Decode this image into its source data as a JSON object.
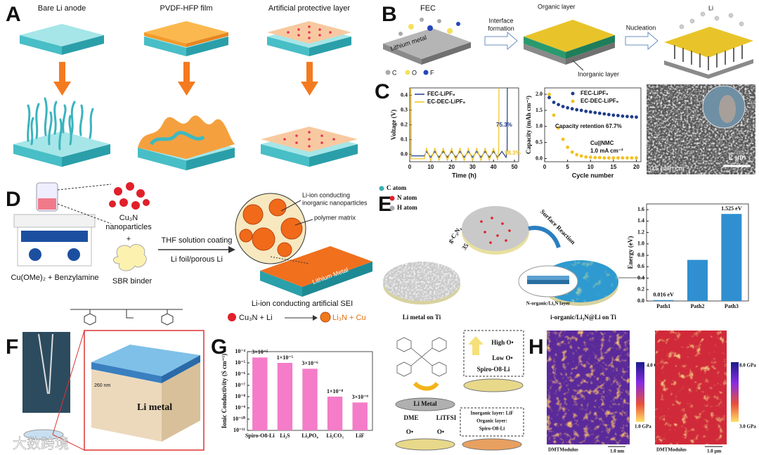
{
  "panels": {
    "A": {
      "letter": "A",
      "labels": [
        "Bare Li anode",
        "PVDF-HFP film",
        "Artificial protective layer"
      ]
    },
    "B": {
      "letter": "B",
      "fec": "FEC",
      "substrate": "Lithium metal",
      "step1": [
        "Interface",
        "formation"
      ],
      "organic": "Organic layer",
      "inorganic": "Inorganic layer",
      "step2": "Nucleation",
      "li": "Li",
      "legend": [
        "C",
        "O",
        "F"
      ]
    },
    "C": {
      "letter": "C",
      "scale_bar": "2 μm",
      "areal_capacity": "0.5 mAh cm⁻²"
    },
    "D": {
      "letter": "D",
      "nanoparticles": [
        "Cu₃N",
        "nanoparticles"
      ],
      "plus": "+",
      "binder": "SBR binder",
      "precursor": "Cu(OMe)₂ + Benzylamine",
      "process_top": "THF solution coating",
      "process_bottom": "Li foil/porous Li",
      "callout1": [
        "Li-ion conducting",
        "inorganic nanoparticles"
      ],
      "callout2": "polymer matrix",
      "substrate": "Lithium Metal",
      "caption": "Li-ion conducting artificial SEI",
      "reactants": "Cu₃N + Li",
      "products": "Li₃N + Cu"
    },
    "E": {
      "letter": "E",
      "legend": [
        "C atom",
        "N atom",
        "H atom"
      ],
      "precursor": "g-C₃N₄",
      "temperature": "350 °C",
      "reaction": "Surface Reaction",
      "start": "Li metal on Ti",
      "layer": "N-organic/Li₃N layer",
      "end": "i-organic/Li₃N@Li on Ti"
    },
    "F": {
      "letter": "F",
      "thickness": "260 nm",
      "substrate": "Li metal"
    },
    "G": {
      "letter": "G",
      "high": "High O•",
      "low": "Low O•",
      "spiro": "Spiro-O8-Li",
      "li_metal": "Li Metal",
      "solvent": "DME",
      "salt": "LiTFSI",
      "inorganic": "Inorganic layer: LiF",
      "organic": "Organic layer:",
      "organic_name": "Spiro-O8-Li",
      "radical": "O•"
    },
    "H": {
      "letter": "H",
      "maps": [
        {
          "max": "4.0 GPa",
          "min": "1.0 GPa",
          "mode": "DMTModulus",
          "scale": "1.0 nm"
        },
        {
          "max": "8.0 GPa",
          "min": "3.0 GPa",
          "mode": "DMTModulus",
          "scale": "1.0 μm"
        }
      ]
    }
  },
  "watermark": "大数跨境",
  "chart_data": [
    {
      "type": "line",
      "xlabel": "Time (h)",
      "ylabel": "Voltage (V)",
      "xlim": [
        0,
        52
      ],
      "xticks": [
        0,
        10,
        20,
        30,
        40,
        50
      ],
      "ylim": [
        -0.05,
        0.45
      ],
      "yticks": [
        {
          "value": 0,
          "label": "0.0"
        },
        0.1,
        0.2,
        0.3,
        0.4
      ],
      "series": [
        {
          "name": "FEC-LiPF₆",
          "color": "#1f3d8a",
          "x": [
            0.5,
            0.6,
            4,
            7,
            8,
            10,
            12,
            14,
            16,
            18,
            20,
            22,
            24,
            26,
            28,
            30,
            32,
            34,
            36,
            38,
            40,
            42,
            44,
            46,
            46.5,
            46.6
          ],
          "values": [
            0.45,
            -0.01,
            -0.01,
            -0.01,
            0.02,
            -0.02,
            0.02,
            -0.02,
            0.02,
            -0.02,
            0.02,
            -0.02,
            0.02,
            -0.02,
            0.02,
            -0.02,
            0.02,
            -0.02,
            0.02,
            -0.02,
            0.02,
            -0.02,
            0.02,
            -0.02,
            0.02,
            0.45
          ]
        },
        {
          "name": "EC-DEC-LiPF₆",
          "color": "#f2c21f",
          "x": [
            0.5,
            0.6,
            4,
            7,
            8,
            10,
            12,
            14,
            16,
            18,
            20,
            22,
            24,
            26,
            28,
            30,
            32,
            34,
            36,
            38,
            40,
            42,
            42.5,
            42.6
          ],
          "values": [
            0.45,
            -0.03,
            -0.03,
            -0.03,
            0.04,
            -0.04,
            0.04,
            -0.04,
            0.04,
            -0.04,
            0.04,
            -0.04,
            0.04,
            -0.04,
            0.04,
            -0.04,
            0.04,
            -0.04,
            0.04,
            -0.04,
            0.04,
            -0.04,
            0.04,
            0.45
          ]
        }
      ],
      "annotations": [
        "75.3%",
        "98.3%"
      ]
    },
    {
      "type": "scatter",
      "xlabel": "Cycle number",
      "ylabel": "Capacity (mAh cm⁻²)",
      "xlim": [
        0,
        21
      ],
      "xticks": [
        0,
        5,
        10,
        15,
        20
      ],
      "ylim": [
        -0.1,
        2.2
      ],
      "yticks": [
        {
          "value": 0,
          "label": "0.0"
        },
        0.5,
        {
          "value": 1,
          "label": "1.0"
        },
        1.5,
        {
          "value": 2,
          "label": "2.0"
        }
      ],
      "x": [
        1,
        2,
        3,
        4,
        5,
        6,
        7,
        8,
        9,
        10,
        11,
        12,
        13,
        14,
        15,
        16,
        17,
        18,
        19,
        20
      ],
      "series": [
        {
          "name": "FEC-LiPF₆",
          "color": "#1f3d8a",
          "values": [
            1.9,
            1.75,
            1.68,
            1.62,
            1.58,
            1.55,
            1.52,
            1.5,
            1.47,
            1.45,
            1.43,
            1.41,
            1.39,
            1.37,
            1.35,
            1.34,
            1.32,
            1.31,
            1.3,
            1.29
          ]
        },
        {
          "name": "EC-DEC-LiPF₆",
          "color": "#f2c21f",
          "values": [
            2.0,
            1.35,
            0.95,
            0.6,
            0.35,
            0.2,
            0.12,
            0.08,
            0.05,
            0.04,
            0.03,
            0.03,
            0.02,
            0.02,
            0.02,
            0.02,
            0.02,
            0.02,
            0.02,
            0.02
          ]
        }
      ],
      "annotations": [
        "Capacity retention 67.7%",
        "Cu||NMC",
        "1.0 mA cm⁻²"
      ]
    },
    {
      "type": "bar",
      "ylabel": "Energy (eV)",
      "categories": [
        "Path1",
        "Path2",
        "Path3"
      ],
      "values": [
        0.016,
        0.72,
        1.525
      ],
      "value_labels": [
        "0.016 eV",
        null,
        "1.525 eV"
      ],
      "color": "#2f8fd0",
      "ylim": [
        0,
        1.7
      ],
      "yticks": [
        {
          "value": 0,
          "label": "0.0"
        },
        0.2,
        0.4,
        0.6,
        0.8,
        {
          "value": 1,
          "label": "1.0"
        },
        1.2,
        1.4,
        1.6
      ]
    },
    {
      "type": "bar",
      "log": true,
      "ylabel": "Ionic Conductivity (S cm⁻¹)",
      "categories": [
        "Spiro-O8-Li",
        "Li₂S",
        "Li₃PO₄",
        "Li₂CO₃",
        "LiF"
      ],
      "values": [
        3e-05,
        1e-05,
        3e-06,
        1e-08,
        3e-09
      ],
      "value_labels": [
        "3×10⁻⁵",
        "1×10⁻⁵",
        "3×10⁻⁶",
        "1×10⁻⁸",
        "3×10⁻⁹"
      ],
      "color": "#f47cc8",
      "ylim": [
        1e-11,
        0.0001
      ],
      "yticks": [
        {
          "value": 1e-11,
          "label": "10⁻¹¹"
        },
        {
          "value": 1e-10,
          "label": "10⁻¹⁰"
        },
        {
          "value": 1e-09,
          "label": "10⁻⁹"
        },
        {
          "value": 1e-08,
          "label": "10⁻⁸"
        },
        {
          "value": 1e-07,
          "label": "10⁻⁷"
        },
        {
          "value": 1e-06,
          "label": "10⁻⁶"
        },
        {
          "value": 1e-05,
          "label": "10⁻⁵"
        },
        {
          "value": 0.0001,
          "label": "10⁻⁴"
        }
      ]
    }
  ]
}
